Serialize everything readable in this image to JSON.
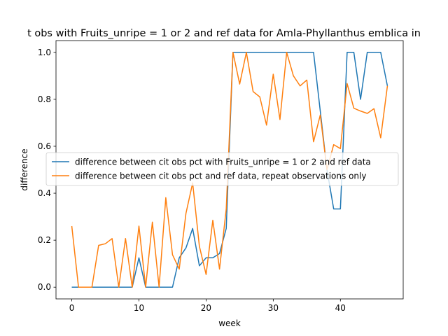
{
  "chart_data": {
    "type": "line",
    "title": "t obs with Fruits_unripe = 1 or 2 and ref data for Amla-Phyllanthus emblica in",
    "xlabel": "week",
    "ylabel": "difference",
    "xlim": [
      -2.35,
      49.35
    ],
    "ylim": [
      -0.05,
      1.05
    ],
    "xticks": [
      0,
      10,
      20,
      30,
      40
    ],
    "yticks": [
      0.0,
      0.2,
      0.4,
      0.6,
      0.8,
      1.0
    ],
    "xtick_labels": [
      "0",
      "10",
      "20",
      "30",
      "40"
    ],
    "ytick_labels": [
      "0.0",
      "0.2",
      "0.4",
      "0.6",
      "0.8",
      "1.0"
    ],
    "legend_position": "center-left",
    "grid": false,
    "series": [
      {
        "name": "difference between cit obs pct with Fruits_unripe = 1 or 2 and ref data",
        "color": "#1f77b4",
        "points": [
          [
            0,
            0
          ],
          [
            1,
            0
          ],
          [
            2,
            0
          ],
          [
            3,
            0
          ],
          [
            4,
            0
          ],
          [
            5,
            0
          ],
          [
            6,
            0
          ],
          [
            7,
            0
          ],
          [
            8,
            0
          ],
          [
            9,
            0
          ],
          [
            10,
            0.125
          ],
          [
            11,
            0
          ],
          [
            12,
            0
          ],
          [
            13,
            0
          ],
          [
            14,
            0
          ],
          [
            15,
            0
          ],
          [
            16,
            0.125
          ],
          [
            17,
            0.167
          ],
          [
            18,
            0.25
          ],
          [
            19,
            0.091
          ],
          [
            20,
            0.125
          ],
          [
            21,
            0.125
          ],
          [
            22,
            0.143
          ],
          [
            23,
            0.25
          ],
          [
            24,
            1.0
          ],
          [
            25,
            1.0
          ],
          [
            26,
            1.0
          ],
          [
            27,
            1.0
          ],
          [
            28,
            1.0
          ],
          [
            29,
            1.0
          ],
          [
            30,
            1.0
          ],
          [
            31,
            1.0
          ],
          [
            32,
            1.0
          ],
          [
            33,
            1.0
          ],
          [
            34,
            1.0
          ],
          [
            35,
            1.0
          ],
          [
            36,
            1.0
          ],
          [
            37,
            0.75
          ],
          [
            38,
            0.5
          ],
          [
            39,
            0.333
          ],
          [
            40,
            0.333
          ],
          [
            41,
            1.0
          ],
          [
            42,
            1.0
          ],
          [
            43,
            0.8
          ],
          [
            44,
            1.0
          ],
          [
            45,
            1.0
          ],
          [
            46,
            1.0
          ],
          [
            47,
            0.857
          ]
        ]
      },
      {
        "name": "difference between cit obs pct and ref data, repeat observations only",
        "color": "#ff7f0e",
        "points": [
          [
            0,
            0.26
          ],
          [
            1,
            0
          ],
          [
            2,
            0
          ],
          [
            3,
            0
          ],
          [
            4,
            0.178
          ],
          [
            5,
            0.185
          ],
          [
            6,
            0.207
          ],
          [
            7,
            0
          ],
          [
            8,
            0.207
          ],
          [
            9,
            0
          ],
          [
            10,
            0.26
          ],
          [
            11,
            0
          ],
          [
            12,
            0.277
          ],
          [
            13,
            0
          ],
          [
            14,
            0.381
          ],
          [
            15,
            0.138
          ],
          [
            16,
            0.077
          ],
          [
            17,
            0.314
          ],
          [
            18,
            0.444
          ],
          [
            19,
            0.174
          ],
          [
            20,
            0.054
          ],
          [
            21,
            0.285
          ],
          [
            22,
            0.077
          ],
          [
            23,
            0.333
          ],
          [
            24,
            1.0
          ],
          [
            25,
            0.865
          ],
          [
            26,
            1.0
          ],
          [
            27,
            0.833
          ],
          [
            28,
            0.81
          ],
          [
            29,
            0.69
          ],
          [
            30,
            0.907
          ],
          [
            31,
            0.714
          ],
          [
            32,
            1.0
          ],
          [
            33,
            0.9
          ],
          [
            34,
            0.857
          ],
          [
            35,
            0.882
          ],
          [
            36,
            0.619
          ],
          [
            37,
            0.733
          ],
          [
            38,
            0.5
          ],
          [
            39,
            0.607
          ],
          [
            40,
            0.59
          ],
          [
            41,
            0.867
          ],
          [
            42,
            0.762
          ],
          [
            43,
            0.75
          ],
          [
            44,
            0.74
          ],
          [
            45,
            0.76
          ],
          [
            46,
            0.636
          ],
          [
            47,
            0.857
          ]
        ]
      }
    ]
  }
}
